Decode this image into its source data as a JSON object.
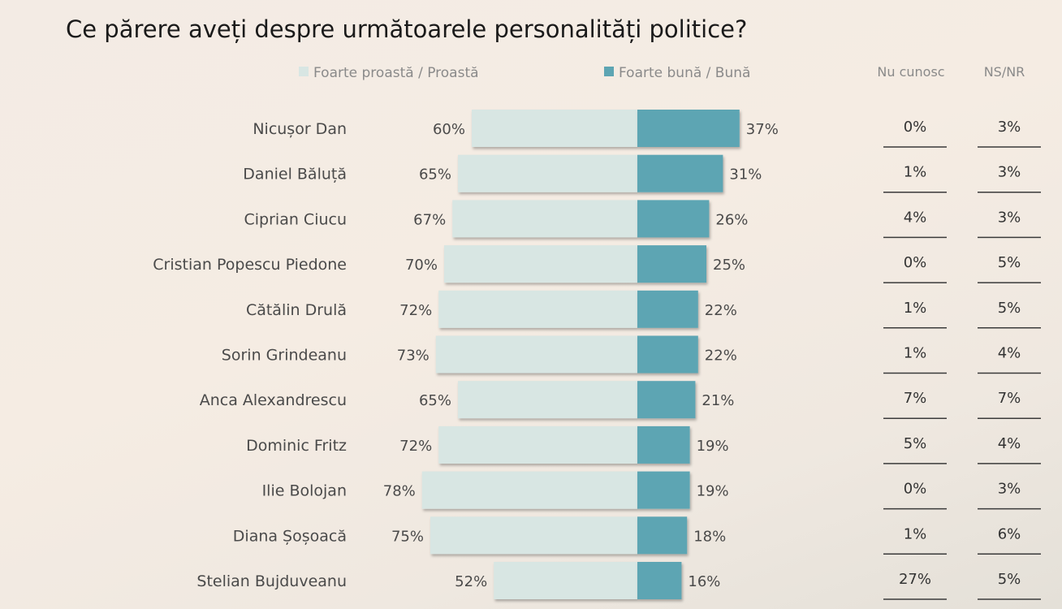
{
  "chart_data": {
    "type": "bar",
    "title": "Ce părere aveți despre următoarele personalități politice?",
    "legend": [
      "Foarte proastă / Proastă",
      "Foarte bună / Bună"
    ],
    "extra_columns": [
      "Nu cunosc",
      "NS/NR"
    ],
    "categories": [
      "Nicușor Dan",
      "Daniel Băluță",
      "Ciprian Ciucu",
      "Cristian Popescu Piedone",
      "Cătălin Drulă",
      "Sorin Grindeanu",
      "Anca Alexandrescu",
      "Dominic Fritz",
      "Ilie Bolojan",
      "Diana Șoșoacă",
      "Stelian Bujduveanu"
    ],
    "series": [
      {
        "name": "Foarte proastă / Proastă",
        "values": [
          60,
          65,
          67,
          70,
          72,
          73,
          65,
          72,
          78,
          75,
          52
        ]
      },
      {
        "name": "Foarte bună / Bună",
        "values": [
          37,
          31,
          26,
          25,
          22,
          22,
          21,
          19,
          19,
          18,
          16
        ]
      },
      {
        "name": "Nu cunosc",
        "values": [
          0,
          1,
          4,
          0,
          1,
          1,
          7,
          5,
          0,
          1,
          27
        ]
      },
      {
        "name": "NS/NR",
        "values": [
          3,
          3,
          3,
          5,
          5,
          4,
          7,
          4,
          3,
          6,
          5
        ]
      }
    ],
    "unit": "%",
    "colors": {
      "negative": "#d8e6e3",
      "positive": "#5da5b3"
    }
  }
}
